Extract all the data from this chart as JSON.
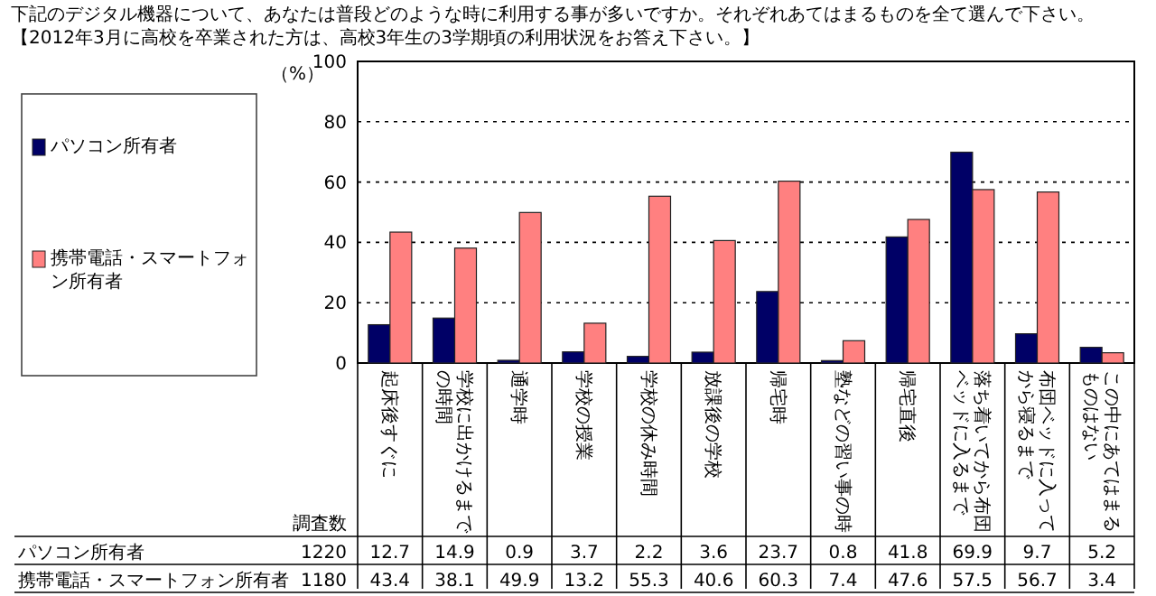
{
  "chart_data": {
    "type": "bar",
    "title": "下記のデジタル機器について、あなたは普段どのような時に利用する事が多いですか。それぞれあてはまるものを全て選んで下さい。",
    "subtitle": "【2012年3月に高校を卒業された方は、高校3年生の3学期頃の利用状況をお答え下さい。】",
    "ylabel": "（%）",
    "categories": [
      "起床後すぐに",
      "学校に出かけるまでの時間",
      "通学時",
      "学校の授業",
      "学校の休み時間",
      "放課後の学校",
      "帰宅時",
      "塾などの習い事の時",
      "帰宅直後",
      "落ち着いてから布団ベッドに入るまで",
      "布団ベッドに入ってから寝るまで",
      "この中にあてはまるものはない"
    ],
    "series": [
      {
        "name": "パソコン所有者",
        "color": "#000066",
        "values": [
          12.7,
          14.9,
          0.9,
          3.7,
          2.2,
          3.6,
          23.7,
          0.8,
          41.8,
          69.9,
          9.7,
          5.2
        ]
      },
      {
        "name": "携帯電話・スマートフォン所有者",
        "color": "#ff8080",
        "values": [
          43.4,
          38.1,
          49.9,
          13.2,
          55.3,
          40.6,
          60.3,
          7.4,
          47.6,
          57.5,
          56.7,
          3.4
        ]
      }
    ],
    "ylim": [
      0,
      100
    ],
    "yticks": [
      0,
      20,
      40,
      60,
      80,
      100
    ],
    "grid": "y",
    "legend": "left",
    "data_labels": true,
    "annotations": [
      "調査数",
      "1220",
      "1180"
    ]
  }
}
